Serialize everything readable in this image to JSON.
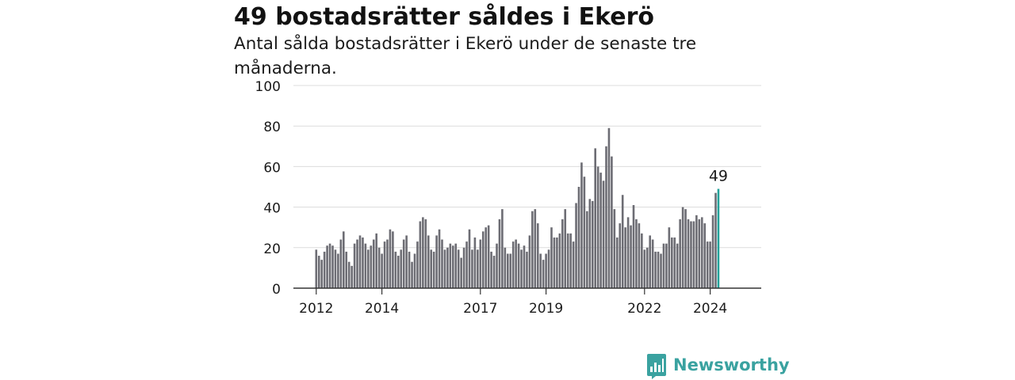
{
  "header": {
    "title": "49 bostadsrätter såldes i Ekerö",
    "subtitle": "Antal sålda bostadsrätter i Ekerö under de senaste tre månaderna."
  },
  "brand": {
    "name": "Newsworthy",
    "color": "#3aa2a0",
    "icon": "newsworthy-logo-icon"
  },
  "chart_data": {
    "type": "bar",
    "title": "49 bostadsrätter såldes i Ekerö",
    "subtitle": "Antal sålda bostadsrätter i Ekerö under de senaste tre månaderna.",
    "xlabel": "",
    "ylabel": "",
    "ylim": [
      0,
      100
    ],
    "yticks": [
      0,
      20,
      40,
      60,
      80,
      100
    ],
    "grid": true,
    "x_start": "2012-01",
    "x_ticks": [
      {
        "label": "2012",
        "month_index": 0
      },
      {
        "label": "2014",
        "month_index": 24
      },
      {
        "label": "2017",
        "month_index": 60
      },
      {
        "label": "2019",
        "month_index": 84
      },
      {
        "label": "2022",
        "month_index": 120
      },
      {
        "label": "2024",
        "month_index": 144
      }
    ],
    "bar_color": "#6d6d74",
    "highlight_color": "#24a29a",
    "annotation": "49",
    "values": [
      19,
      16,
      14,
      18,
      21,
      22,
      21,
      19,
      17,
      24,
      28,
      18,
      13,
      11,
      22,
      24,
      26,
      25,
      22,
      19,
      21,
      24,
      27,
      20,
      17,
      23,
      24,
      29,
      28,
      18,
      16,
      19,
      24,
      26,
      18,
      13,
      17,
      23,
      33,
      35,
      34,
      26,
      19,
      18,
      26,
      29,
      24,
      19,
      20,
      22,
      21,
      22,
      19,
      15,
      20,
      23,
      29,
      19,
      25,
      19,
      24,
      28,
      30,
      31,
      18,
      16,
      22,
      34,
      39,
      20,
      17,
      17,
      23,
      24,
      22,
      19,
      21,
      18,
      26,
      38,
      39,
      32,
      17,
      14,
      17,
      19,
      30,
      25,
      25,
      27,
      34,
      39,
      27,
      27,
      23,
      42,
      50,
      62,
      55,
      38,
      44,
      43,
      69,
      60,
      57,
      53,
      70,
      79,
      65,
      39,
      25,
      32,
      46,
      30,
      35,
      31,
      41,
      34,
      32,
      27,
      19,
      20,
      26,
      24,
      18,
      18,
      17,
      22,
      22,
      30,
      25,
      25,
      22,
      34,
      40,
      39,
      34,
      33,
      33,
      36,
      34,
      35,
      32,
      23,
      23,
      36,
      47,
      49
    ]
  }
}
